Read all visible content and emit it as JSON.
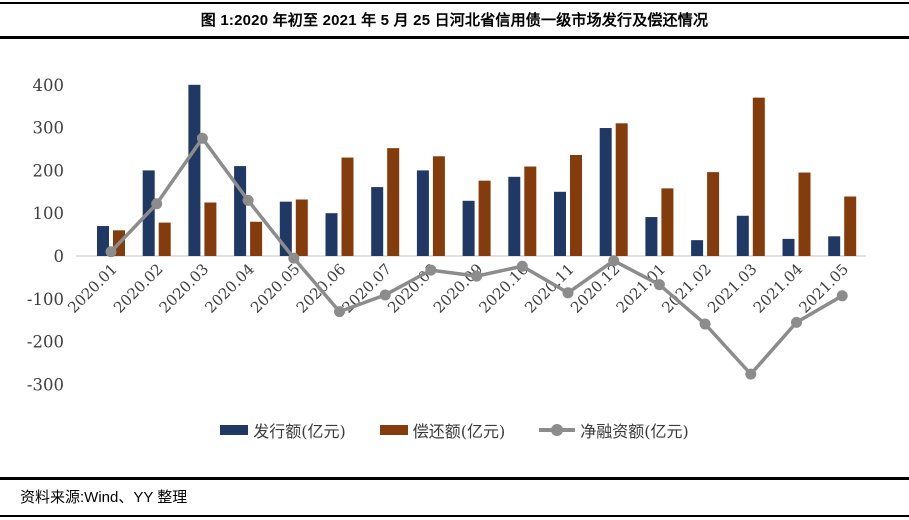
{
  "header": {
    "title": "图 1:2020 年初至 2021 年 5 月 25 日河北省信用债一级市场发行及偿还情况"
  },
  "footer": {
    "source": "资料来源:Wind、YY 整理"
  },
  "chart_data": {
    "type": "bar",
    "subtype": "grouped-bars-with-line",
    "categories": [
      "2020.01",
      "2020.02",
      "2020.03",
      "2020.04",
      "2020.05",
      "2020.06",
      "2020.07",
      "2020.08",
      "2020.09",
      "2020.10",
      "2020.11",
      "2020.12",
      "2021.01",
      "2021.02",
      "2021.03",
      "2021.04",
      "2021.05"
    ],
    "series": [
      {
        "name": "发行额(亿元)",
        "type": "bar",
        "color": "#1F3864",
        "values": [
          70,
          200,
          400,
          210,
          127,
          100,
          161,
          200,
          129,
          185,
          150,
          299,
          91,
          37,
          94,
          40,
          46
        ]
      },
      {
        "name": "偿还额(亿元)",
        "type": "bar",
        "color": "#843C0C",
        "values": [
          60,
          78,
          125,
          80,
          132,
          230,
          252,
          233,
          176,
          209,
          236,
          310,
          158,
          196,
          370,
          195,
          139
        ]
      },
      {
        "name": "净融资额(亿元)",
        "type": "line",
        "color": "#8C8C8C",
        "values": [
          10,
          122,
          275,
          130,
          -5,
          -130,
          -91,
          -33,
          -47,
          -24,
          -86,
          -11,
          -67,
          -159,
          -276,
          -155,
          -93
        ]
      }
    ],
    "title": "",
    "xlabel": "",
    "ylabel": "",
    "ylim": [
      -300,
      400
    ],
    "yticks": [
      400,
      300,
      200,
      100,
      0,
      -100,
      -200,
      -300
    ],
    "grid": false,
    "legend_position": "bottom",
    "axis_line_color": "#D9D9D9",
    "tick_label_color": "#3F3F3F"
  }
}
